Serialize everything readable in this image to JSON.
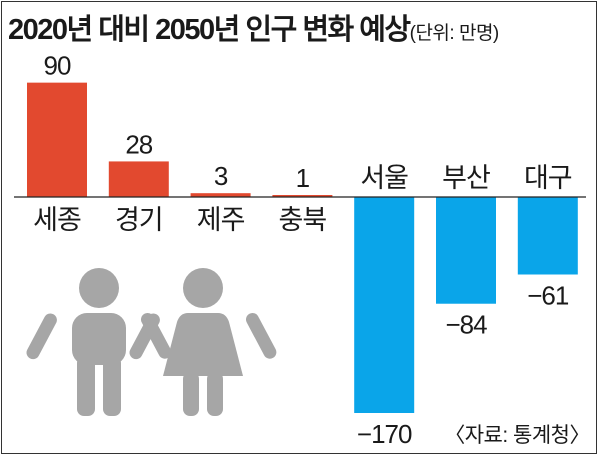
{
  "title": "2020년 대비 2050년 인구 변화 예상",
  "unit": "(단위: 만명)",
  "source": "〈자료: 통계청〉",
  "colors": {
    "positive": "#e2492f",
    "negative": "#0aa5e9",
    "icon": "#a6a6a6"
  },
  "icons": [
    "boy-icon",
    "girl-icon"
  ],
  "chart_data": {
    "type": "bar",
    "categories": [
      "세종",
      "경기",
      "제주",
      "충북",
      "서울",
      "부산",
      "대구"
    ],
    "values": [
      90,
      28,
      3,
      1,
      -170,
      -84,
      -61
    ],
    "value_labels": [
      "90",
      "28",
      "3",
      "1",
      "−170",
      "−84",
      "−61"
    ],
    "ylim": [
      -170,
      90
    ],
    "grid": false,
    "legend": "none"
  }
}
